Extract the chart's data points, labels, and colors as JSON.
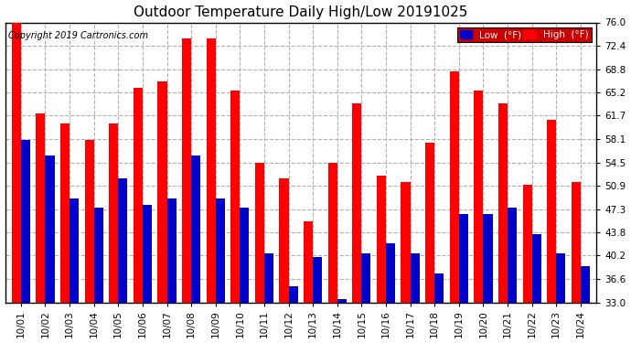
{
  "title": "Outdoor Temperature Daily High/Low 20191025",
  "copyright": "Copyright 2019 Cartronics.com",
  "dates": [
    "10/01",
    "10/02",
    "10/03",
    "10/04",
    "10/05",
    "10/06",
    "10/07",
    "10/08",
    "10/09",
    "10/10",
    "10/11",
    "10/12",
    "10/13",
    "10/14",
    "10/15",
    "10/16",
    "10/17",
    "10/18",
    "10/19",
    "10/20",
    "10/21",
    "10/22",
    "10/23",
    "10/24"
  ],
  "highs": [
    76.5,
    62.0,
    60.5,
    58.0,
    60.5,
    66.0,
    67.0,
    73.5,
    73.5,
    65.5,
    54.5,
    52.0,
    45.5,
    54.5,
    63.5,
    52.5,
    51.5,
    57.5,
    68.5,
    65.5,
    63.5,
    51.0,
    61.0,
    51.5
  ],
  "lows": [
    58.0,
    55.5,
    49.0,
    47.5,
    52.0,
    48.0,
    49.0,
    55.5,
    49.0,
    47.5,
    40.5,
    35.5,
    40.0,
    33.5,
    40.5,
    42.0,
    40.5,
    37.5,
    46.5,
    46.5,
    47.5,
    43.5,
    40.5,
    38.5
  ],
  "high_color": "#ff0000",
  "low_color": "#0000cc",
  "bg_color": "#ffffff",
  "plot_bg_color": "#ffffff",
  "grid_color": "#b0b0b0",
  "ymin": 33.0,
  "ymax": 76.0,
  "yticks": [
    33.0,
    36.6,
    40.2,
    43.8,
    47.3,
    50.9,
    54.5,
    58.1,
    61.7,
    65.2,
    68.8,
    72.4,
    76.0
  ],
  "legend_low_label": "Low  (°F)",
  "legend_high_label": "High  (°F)",
  "title_fontsize": 11,
  "copyright_fontsize": 7,
  "tick_fontsize": 7.5,
  "bar_width": 0.38
}
